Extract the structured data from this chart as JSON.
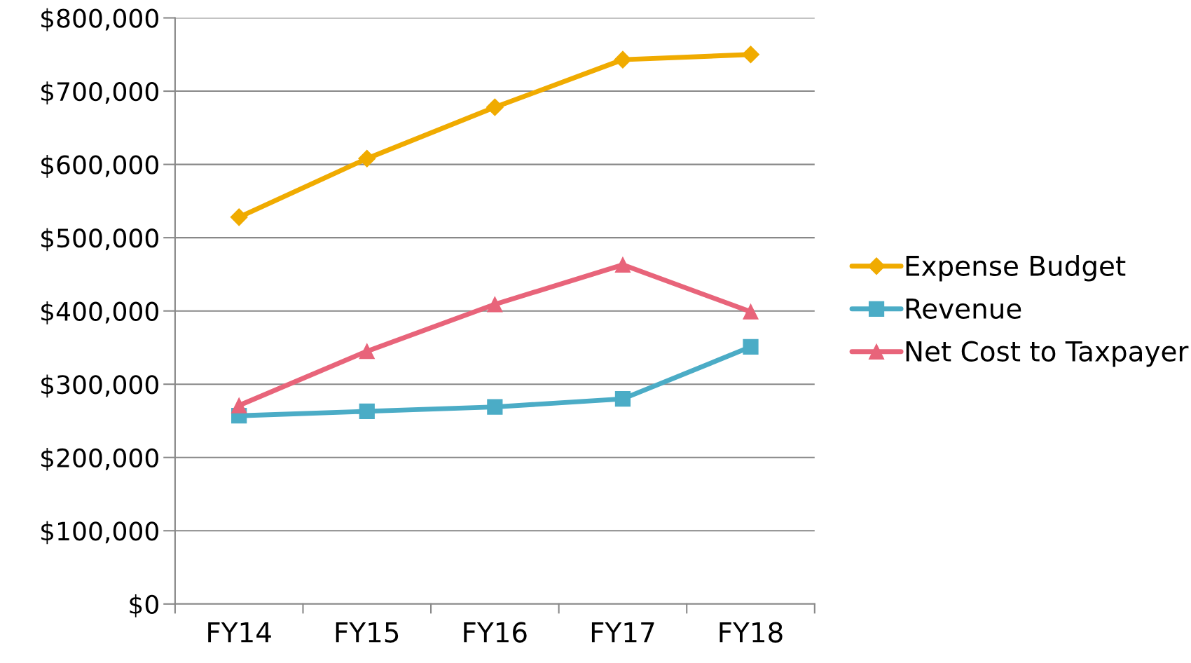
{
  "chart_data": {
    "type": "line",
    "categories": [
      "FY14",
      "FY15",
      "FY16",
      "FY17",
      "FY18"
    ],
    "series": [
      {
        "name": "Expense Budget",
        "color": "#f0ab00",
        "marker": "diamond",
        "values": [
          528000,
          608000,
          678000,
          743000,
          750000
        ]
      },
      {
        "name": "Revenue",
        "color": "#4bacc6",
        "marker": "square",
        "values": [
          257000,
          263000,
          269000,
          280000,
          351000
        ]
      },
      {
        "name": "Net Cost to Taxpayer",
        "color": "#e8647a",
        "marker": "triangle",
        "values": [
          271000,
          345000,
          409000,
          463000,
          399000
        ]
      }
    ],
    "ylim": [
      0,
      800000
    ],
    "yticks": [
      {
        "value": 0,
        "label": "$0"
      },
      {
        "value": 100000,
        "label": "$100,000"
      },
      {
        "value": 200000,
        "label": "$200,000"
      },
      {
        "value": 300000,
        "label": "$300,000"
      },
      {
        "value": 400000,
        "label": "$400,000"
      },
      {
        "value": 500000,
        "label": "$500,000"
      },
      {
        "value": 600000,
        "label": "$600,000"
      },
      {
        "value": 700000,
        "label": "$700,000"
      },
      {
        "value": 800000,
        "label": "$800,000"
      }
    ],
    "grid": "y",
    "legend": "right",
    "line_style": "solid"
  }
}
